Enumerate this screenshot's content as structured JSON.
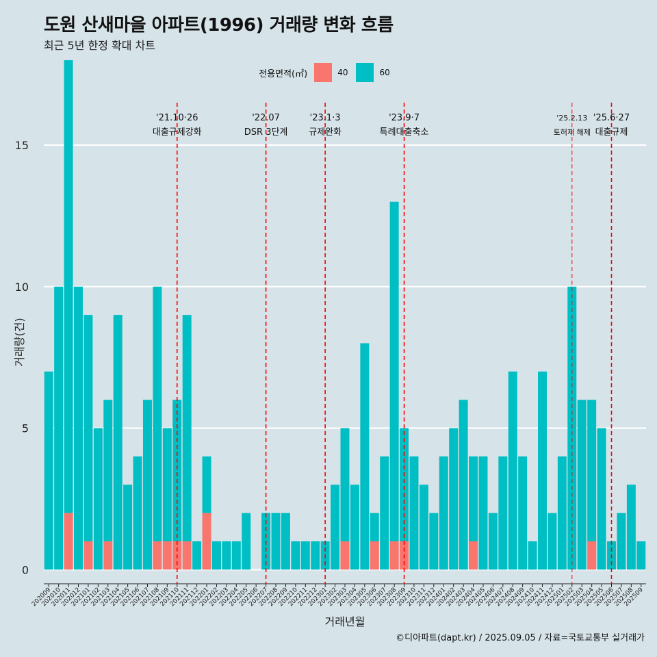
{
  "chart_data": {
    "type": "bar",
    "title": "도원 산새마을 아파트(1996) 거래량 변화 흐름",
    "subtitle": "최근 5년 한정 확대 차트",
    "xlabel": "거래년월",
    "ylabel": "거래량(건)",
    "ylim": [
      -0.5,
      16.5
    ],
    "yticks": [
      0,
      5,
      10,
      15
    ],
    "legend": {
      "title": "전용면적(㎡)",
      "position": "top"
    },
    "categories": [
      "202009",
      "202010",
      "202011",
      "202012",
      "202101",
      "202102",
      "202103",
      "202104",
      "202105",
      "202106",
      "202107",
      "202108",
      "202109",
      "202110",
      "202111",
      "202112",
      "202201",
      "202202",
      "202203",
      "202204",
      "202205",
      "202206",
      "202207",
      "202208",
      "202209",
      "202210",
      "202211",
      "202212",
      "202301",
      "202302",
      "202303",
      "202304",
      "202305",
      "202306",
      "202307",
      "202308",
      "202309",
      "202310",
      "202311",
      "202312",
      "202401",
      "202402",
      "202403",
      "202404",
      "202405",
      "202406",
      "202407",
      "202408",
      "202409",
      "202410",
      "202411",
      "202412",
      "202501",
      "202502",
      "202503",
      "202504",
      "202505",
      "202506",
      "202507",
      "202508",
      "202509"
    ],
    "series": [
      {
        "name": "40",
        "color": "#f8766d",
        "values": [
          0,
          0,
          2,
          0,
          1,
          0,
          1,
          0,
          0,
          0,
          0,
          1,
          1,
          1,
          1,
          0,
          2,
          0,
          0,
          0,
          0,
          0,
          0,
          0,
          0,
          0,
          0,
          0,
          0,
          0,
          1,
          0,
          0,
          1,
          0,
          1,
          1,
          0,
          0,
          0,
          0,
          0,
          0,
          1,
          0,
          0,
          0,
          0,
          0,
          0,
          0,
          0,
          0,
          0,
          0,
          1,
          0,
          0,
          0,
          0,
          0
        ]
      },
      {
        "name": "60",
        "color": "#00bfc4",
        "values": [
          7,
          10,
          16,
          10,
          8,
          5,
          5,
          9,
          3,
          4,
          6,
          9,
          4,
          5,
          8,
          1,
          2,
          1,
          1,
          1,
          2,
          0,
          2,
          2,
          2,
          1,
          1,
          1,
          1,
          3,
          4,
          3,
          8,
          1,
          4,
          12,
          4,
          4,
          3,
          2,
          4,
          5,
          6,
          3,
          4,
          2,
          4,
          7,
          4,
          1,
          7,
          2,
          4,
          10,
          6,
          5,
          5,
          1,
          2,
          3,
          1
        ]
      }
    ],
    "annotations": [
      {
        "at": "202110",
        "date": "'21.10·26",
        "text": "대출규제강화"
      },
      {
        "at": "202207",
        "date": "'22.07",
        "text": "DSR 3단계"
      },
      {
        "at": "202301",
        "date": "'23.1·3",
        "text": "규제완화"
      },
      {
        "at": "202309",
        "date": "'23.9·7",
        "text": "특례대출축소"
      },
      {
        "at": "202502",
        "date": "'25.2.13",
        "text": "토허제 해제"
      },
      {
        "at": "202506",
        "date": "'25.6·27",
        "text": "대출규제"
      }
    ],
    "grid": true
  },
  "caption": "©디아파트(dapt.kr) / 2025.09.05 / 자료=국토교통부 실거래가"
}
